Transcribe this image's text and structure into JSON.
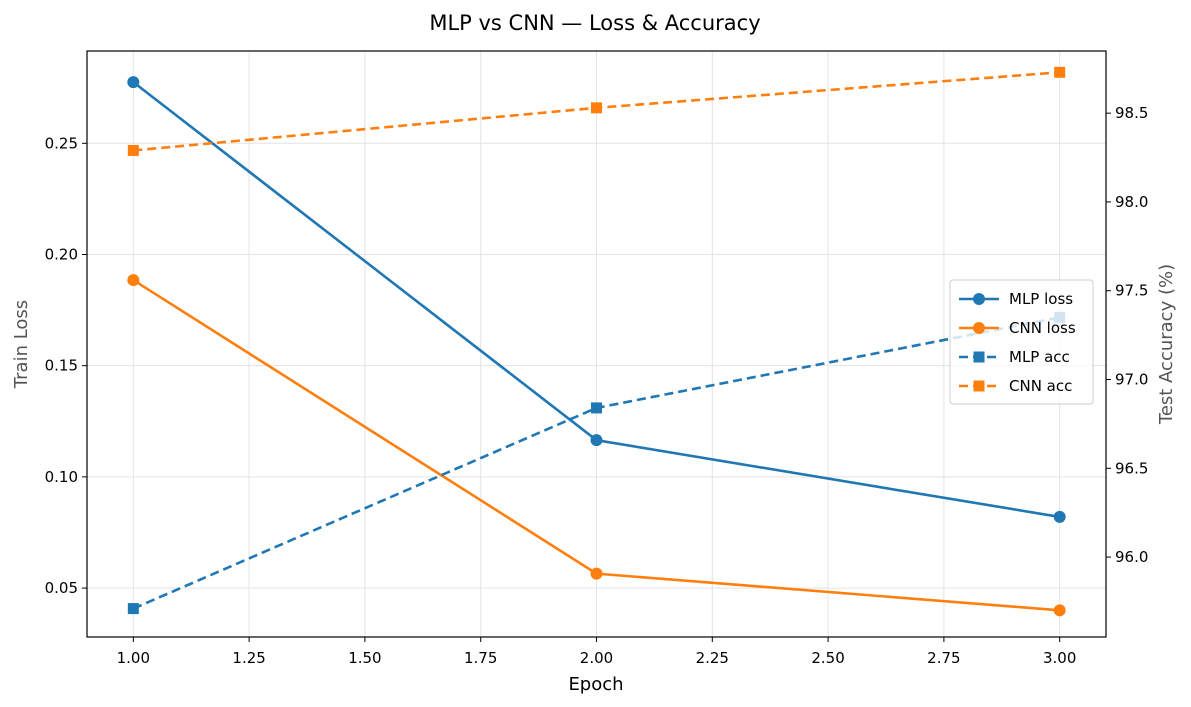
{
  "chart_data": {
    "type": "line",
    "title": "MLP vs CNN — Loss & Accuracy",
    "xlabel": "Epoch",
    "ylabel_left": "Train Loss",
    "ylabel_right": "Test Accuracy (%)",
    "x": [
      1,
      2,
      3
    ],
    "xlim": [
      0.9,
      3.1
    ],
    "ylim_left": [
      0.028,
      0.2915
    ],
    "ylim_right": [
      95.55,
      98.85
    ],
    "x_ticks": [
      "1.00",
      "1.25",
      "1.50",
      "1.75",
      "2.00",
      "2.25",
      "2.50",
      "2.75",
      "3.00"
    ],
    "y_left_ticks": [
      "0.05",
      "0.10",
      "0.15",
      "0.20",
      "0.25"
    ],
    "y_right_ticks": [
      "96.0",
      "96.5",
      "97.0",
      "97.5",
      "98.0",
      "98.5"
    ],
    "grid": true,
    "legend_position": "center-right",
    "series": [
      {
        "name": "MLP loss",
        "axis": "left",
        "values": [
          0.2775,
          0.1165,
          0.082
        ],
        "color": "#1f77b4",
        "style": "solid",
        "marker": "circle"
      },
      {
        "name": "CNN loss",
        "axis": "left",
        "values": [
          0.1885,
          0.0565,
          0.04
        ],
        "color": "#ff7f0e",
        "style": "solid",
        "marker": "circle"
      },
      {
        "name": "MLP acc",
        "axis": "right",
        "values": [
          95.71,
          96.84,
          97.35
        ],
        "color": "#1f77b4",
        "style": "dashed",
        "marker": "square"
      },
      {
        "name": "CNN acc",
        "axis": "right",
        "values": [
          98.29,
          98.53,
          98.73
        ],
        "color": "#ff7f0e",
        "style": "dashed",
        "marker": "square"
      }
    ]
  }
}
